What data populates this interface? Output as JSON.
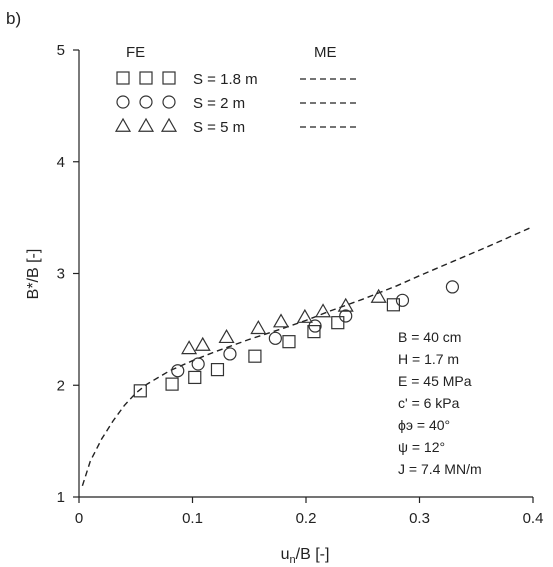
{
  "panel_label": "b)",
  "chart_data": {
    "type": "scatter",
    "xlabel_main": "u",
    "xlabel_sub": "n",
    "xlabel_rest": "/B [-]",
    "ylabel": "B*/B [-]",
    "xlim": [
      0,
      0.4
    ],
    "ylim": [
      1,
      5
    ],
    "x_ticks": [
      "0",
      "0.1",
      "0.2",
      "0.3",
      "0.4"
    ],
    "x_tick_values": [
      0,
      0.1,
      0.2,
      0.3,
      0.4
    ],
    "y_ticks": [
      "1",
      "2",
      "3",
      "4",
      "5"
    ],
    "y_tick_values": [
      1,
      2,
      3,
      4,
      5
    ],
    "grid": false,
    "legend": {
      "fe_header": "FE",
      "me_header": "ME",
      "placement": "top-left",
      "entries": [
        {
          "label": "S = 1.8 m",
          "marker": "square"
        },
        {
          "label": "S = 2 m",
          "marker": "circle"
        },
        {
          "label": "S = 5 m",
          "marker": "triangle"
        }
      ]
    },
    "series": [
      {
        "name": "S = 1.8 m",
        "marker": "square",
        "x": [
          0.054,
          0.082,
          0.102,
          0.122,
          0.155,
          0.185,
          0.207,
          0.228,
          0.277
        ],
        "y": [
          1.95,
          2.01,
          2.07,
          2.14,
          2.26,
          2.39,
          2.48,
          2.56,
          2.72
        ]
      },
      {
        "name": "S = 2 m",
        "marker": "circle",
        "x": [
          0.087,
          0.105,
          0.133,
          0.173,
          0.208,
          0.235,
          0.285,
          0.329
        ],
        "y": [
          2.13,
          2.19,
          2.28,
          2.42,
          2.53,
          2.62,
          2.76,
          2.88
        ]
      },
      {
        "name": "S = 5 m",
        "marker": "triangle",
        "x": [
          0.097,
          0.109,
          0.13,
          0.158,
          0.178,
          0.199,
          0.215,
          0.235,
          0.264
        ],
        "y": [
          2.33,
          2.36,
          2.43,
          2.51,
          2.57,
          2.61,
          2.66,
          2.71,
          2.79
        ]
      }
    ],
    "curve": {
      "style": "dashed",
      "x": [
        0.003,
        0.01,
        0.02,
        0.03,
        0.04,
        0.05,
        0.06,
        0.08,
        0.1,
        0.12,
        0.15,
        0.18,
        0.2,
        0.22,
        0.25,
        0.28,
        0.3,
        0.33,
        0.36,
        0.4
      ],
      "y": [
        1.1,
        1.32,
        1.52,
        1.68,
        1.82,
        1.93,
        2.01,
        2.13,
        2.22,
        2.3,
        2.41,
        2.51,
        2.58,
        2.66,
        2.77,
        2.89,
        2.98,
        3.11,
        3.24,
        3.42
      ]
    },
    "parameters": [
      "B = 40 cm",
      "H = 1.7 m",
      "E = 45 MPa",
      "c' = 6 kPa",
      "ϕэ = 40°",
      "ψ = 12°",
      "J = 7.4 MN/m"
    ]
  }
}
